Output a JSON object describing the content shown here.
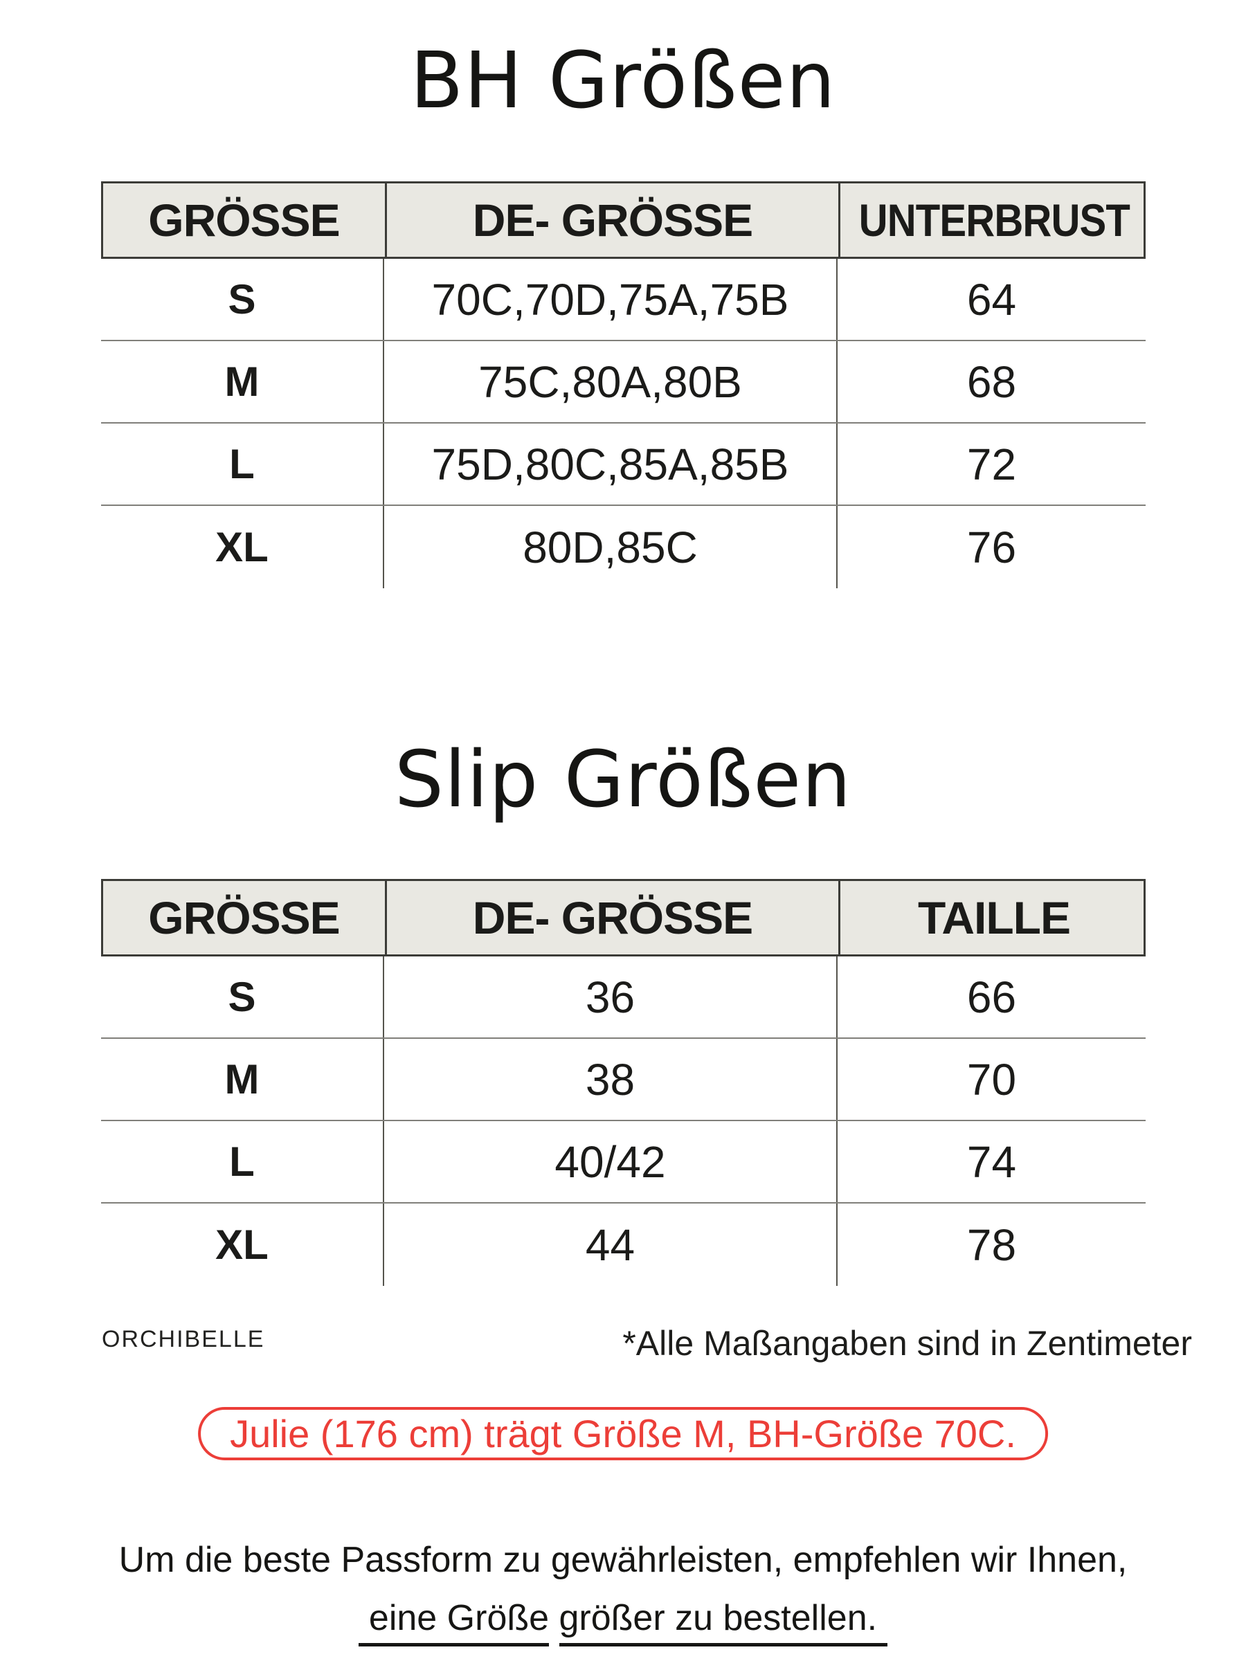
{
  "colors": {
    "accent_red": "#ec3e38",
    "header_bg": "#e9e8e2",
    "text": "#1b1b19"
  },
  "bra_section": {
    "title": "BH Größen",
    "table": {
      "headers": [
        "GRÖSSE",
        "DE- GRÖSSE",
        "UNTERBRUST"
      ],
      "rows": [
        [
          "S",
          "70C,70D,75A,75B",
          "64"
        ],
        [
          "M",
          "75C,80A,80B",
          "68"
        ],
        [
          "L",
          "75D,80C,85A,85B",
          "72"
        ],
        [
          "XL",
          "80D,85C",
          "76"
        ]
      ]
    }
  },
  "slip_section": {
    "title": "Slip Größen",
    "table": {
      "headers": [
        "GRÖSSE",
        "DE- GRÖSSE",
        "TAILLE"
      ],
      "rows": [
        [
          "S",
          "36",
          "66"
        ],
        [
          "M",
          "38",
          "70"
        ],
        [
          "L",
          "40/42",
          "74"
        ],
        [
          "XL",
          "44",
          "78"
        ]
      ]
    }
  },
  "footer": {
    "brand": "ORCHIBELLE",
    "unit_note": "*Alle Maßangaben sind in Zentimeter",
    "model_info": "Julie (176 cm) trägt Größe M, BH-Größe 70C.",
    "advice_line1": "Um die beste Passform zu gewährleisten, empfehlen wir Ihnen,",
    "advice_line2_part1": " eine Größe",
    "advice_line2_part2": "größer zu bestellen. "
  }
}
